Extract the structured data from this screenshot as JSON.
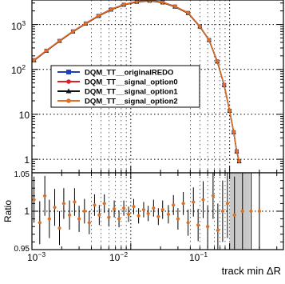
{
  "chart_data": [
    {
      "type": "line",
      "panel": "main",
      "xscale": "log",
      "yscale": "log",
      "xlim": [
        0.001,
        0.35
      ],
      "ylim": [
        0.5,
        3500
      ],
      "grid": true,
      "legend_placement": "center-right",
      "y_tick_labels": [
        {
          "value": 1000,
          "base": "10",
          "exp": "3"
        },
        {
          "value": 100,
          "base": "10",
          "exp": "2"
        },
        {
          "value": 10,
          "label": "10"
        },
        {
          "value": 1,
          "label": "1"
        }
      ],
      "series": [
        {
          "name": "DQM_TT__originalREDO",
          "color": "#1f3fbf",
          "marker": "square"
        },
        {
          "name": "DQM_TT__signal_option0",
          "color": "#dd2222",
          "marker": "circle"
        },
        {
          "name": "DQM_TT__signal_option1",
          "color": "#111111",
          "marker": "triangle"
        },
        {
          "name": "DQM_TT__signal_option2",
          "color": "#e07020",
          "marker": "circle"
        }
      ],
      "x": [
        0.00105,
        0.0014,
        0.0019,
        0.0026,
        0.0035,
        0.0047,
        0.0063,
        0.0085,
        0.0115,
        0.0155,
        0.021,
        0.028,
        0.038,
        0.05,
        0.062,
        0.075,
        0.088,
        0.1,
        0.11,
        0.118,
        0.125
      ],
      "y": [
        160,
        260,
        430,
        700,
        1050,
        1550,
        2150,
        2750,
        3200,
        3400,
        3100,
        2500,
        1800,
        900,
        450,
        150,
        45,
        12,
        4,
        1.5,
        0.9
      ]
    },
    {
      "type": "scatter",
      "panel": "ratio",
      "xscale": "log",
      "xlim": [
        0.001,
        0.35
      ],
      "ylim": [
        0.95,
        1.05
      ],
      "ylabel": "Ratio",
      "xlabel": "track min ΔR",
      "grid": true,
      "y_tick_labels": [
        {
          "value": 1.05,
          "label": "1.05"
        },
        {
          "value": 1,
          "label": "1"
        },
        {
          "value": 0.95,
          "label": "0.95"
        }
      ],
      "x_tick_labels": [
        {
          "value": 0.001,
          "base": "10",
          "exp": "−3"
        },
        {
          "value": 0.01,
          "base": "10",
          "exp": "−2"
        },
        {
          "value": 0.1,
          "base": "10",
          "exp": "−1"
        }
      ],
      "band_xrange": [
        0.1,
        0.16
      ],
      "ratio_points": [
        {
          "x": 0.00105,
          "y": 1.015,
          "err": 0.03
        },
        {
          "x": 0.0012,
          "y": 0.985,
          "err": 0.028
        },
        {
          "x": 0.00135,
          "y": 1.02,
          "err": 0.026
        },
        {
          "x": 0.0015,
          "y": 0.99,
          "err": 0.025
        },
        {
          "x": 0.0017,
          "y": 1.005,
          "err": 0.024
        },
        {
          "x": 0.0019,
          "y": 0.978,
          "err": 0.022
        },
        {
          "x": 0.0021,
          "y": 1.01,
          "err": 0.02
        },
        {
          "x": 0.0024,
          "y": 0.995,
          "err": 0.019
        },
        {
          "x": 0.0027,
          "y": 1.012,
          "err": 0.018
        },
        {
          "x": 0.003,
          "y": 0.99,
          "err": 0.017
        },
        {
          "x": 0.0034,
          "y": 1.0,
          "err": 0.016
        },
        {
          "x": 0.0038,
          "y": 0.985,
          "err": 0.015
        },
        {
          "x": 0.0043,
          "y": 1.008,
          "err": 0.014
        },
        {
          "x": 0.0048,
          "y": 0.995,
          "err": 0.013
        },
        {
          "x": 0.0054,
          "y": 1.01,
          "err": 0.012
        },
        {
          "x": 0.006,
          "y": 0.992,
          "err": 0.012
        },
        {
          "x": 0.0068,
          "y": 1.003,
          "err": 0.011
        },
        {
          "x": 0.0076,
          "y": 0.99,
          "err": 0.011
        },
        {
          "x": 0.0085,
          "y": 1.004,
          "err": 0.01
        },
        {
          "x": 0.0095,
          "y": 0.996,
          "err": 0.01
        },
        {
          "x": 0.0107,
          "y": 1.006,
          "err": 0.01
        },
        {
          "x": 0.012,
          "y": 0.994,
          "err": 0.01
        },
        {
          "x": 0.0135,
          "y": 1.002,
          "err": 0.01
        },
        {
          "x": 0.015,
          "y": 0.997,
          "err": 0.01
        },
        {
          "x": 0.017,
          "y": 1.004,
          "err": 0.011
        },
        {
          "x": 0.019,
          "y": 0.993,
          "err": 0.011
        },
        {
          "x": 0.021,
          "y": 1.002,
          "err": 0.012
        },
        {
          "x": 0.024,
          "y": 0.996,
          "err": 0.012
        },
        {
          "x": 0.027,
          "y": 1.008,
          "err": 0.013
        },
        {
          "x": 0.03,
          "y": 0.99,
          "err": 0.014
        },
        {
          "x": 0.034,
          "y": 1.01,
          "err": 0.015
        },
        {
          "x": 0.038,
          "y": 0.985,
          "err": 0.017
        },
        {
          "x": 0.043,
          "y": 1.012,
          "err": 0.019
        },
        {
          "x": 0.048,
          "y": 0.982,
          "err": 0.021
        },
        {
          "x": 0.054,
          "y": 1.015,
          "err": 0.024
        },
        {
          "x": 0.06,
          "y": 0.98,
          "err": 0.027
        },
        {
          "x": 0.068,
          "y": 1.02,
          "err": 0.03
        },
        {
          "x": 0.076,
          "y": 0.975,
          "err": 0.035
        },
        {
          "x": 0.085,
          "y": 1.0,
          "err": 0.04
        },
        {
          "x": 0.095,
          "y": 1.01,
          "err": 0.045
        },
        {
          "x": 0.112,
          "y": 0.995,
          "err": 0.05
        },
        {
          "x": 0.135,
          "y": 1.0,
          "err": 0.05
        },
        {
          "x": 0.165,
          "y": 1.0,
          "err": 0.05
        },
        {
          "x": 0.2,
          "y": 1.0,
          "err": 0.05
        }
      ]
    }
  ]
}
